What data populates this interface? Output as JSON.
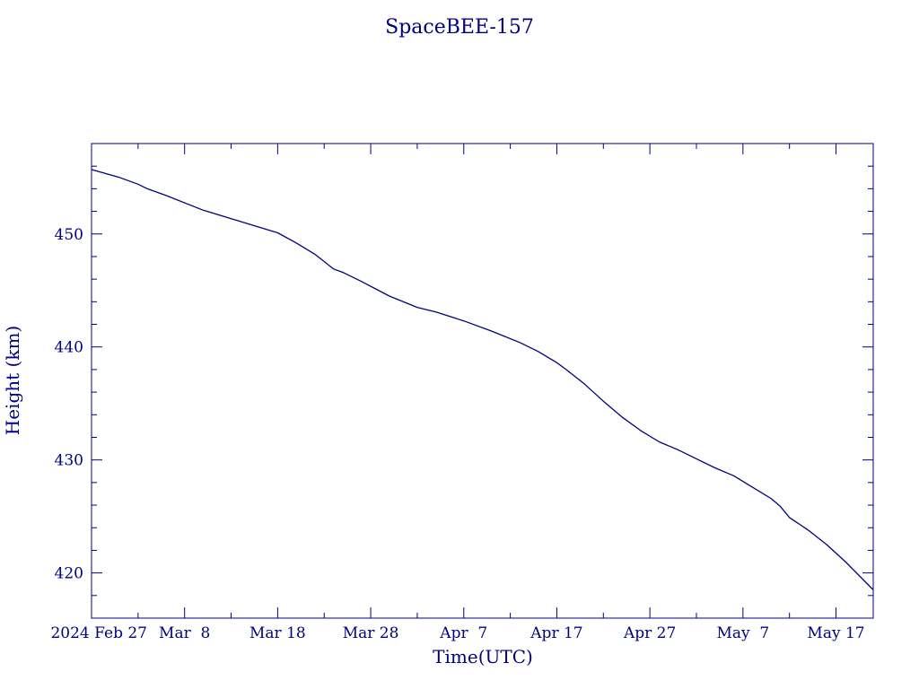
{
  "chart_data": {
    "type": "line",
    "title": "SpaceBEE-157",
    "xlabel": "Time(UTC)",
    "ylabel": "Height (km)",
    "x_axis_type": "date",
    "xlim": [
      "2024-02-27",
      "2024-05-21"
    ],
    "ylim": [
      416,
      458
    ],
    "grid": false,
    "legend": "none",
    "x_ticks": [
      {
        "date": "2024-02-27",
        "label": "2024 Feb 27"
      },
      {
        "date": "2024-03-08",
        "label": "Mar  8"
      },
      {
        "date": "2024-03-18",
        "label": "Mar 18"
      },
      {
        "date": "2024-03-28",
        "label": "Mar 28"
      },
      {
        "date": "2024-04-07",
        "label": "Apr  7"
      },
      {
        "date": "2024-04-17",
        "label": "Apr 17"
      },
      {
        "date": "2024-04-27",
        "label": "Apr 27"
      },
      {
        "date": "2024-05-07",
        "label": "May  7"
      },
      {
        "date": "2024-05-17",
        "label": "May 17"
      }
    ],
    "y_ticks": [
      {
        "value": 420,
        "label": "420"
      },
      {
        "value": 430,
        "label": "430"
      },
      {
        "value": 440,
        "label": "440"
      },
      {
        "value": 450,
        "label": "450"
      }
    ],
    "series": [
      {
        "color": "#000080",
        "x": [
          "2024-02-27",
          "2024-03-01",
          "2024-03-03",
          "2024-03-04",
          "2024-03-06",
          "2024-03-10",
          "2024-03-14",
          "2024-03-18",
          "2024-03-20",
          "2024-03-22",
          "2024-03-24",
          "2024-03-25",
          "2024-03-27",
          "2024-03-30",
          "2024-04-02",
          "2024-04-04",
          "2024-04-07",
          "2024-04-10",
          "2024-04-13",
          "2024-04-15",
          "2024-04-17",
          "2024-04-18",
          "2024-04-20",
          "2024-04-22",
          "2024-04-24",
          "2024-04-26",
          "2024-04-28",
          "2024-04-30",
          "2024-05-02",
          "2024-05-04",
          "2024-05-06",
          "2024-05-08",
          "2024-05-10",
          "2024-05-11",
          "2024-05-12",
          "2024-05-14",
          "2024-05-16",
          "2024-05-18",
          "2024-05-21"
        ],
        "values": [
          455.7,
          455.0,
          454.4,
          454.0,
          453.4,
          452.1,
          451.1,
          450.1,
          449.2,
          448.2,
          446.9,
          446.6,
          445.8,
          444.5,
          443.5,
          443.1,
          442.3,
          441.4,
          440.4,
          439.6,
          438.6,
          438.0,
          436.7,
          435.2,
          433.8,
          432.6,
          431.6,
          430.9,
          430.1,
          429.3,
          428.6,
          427.6,
          426.6,
          425.9,
          424.9,
          423.8,
          422.5,
          421.0,
          418.5
        ]
      }
    ]
  }
}
